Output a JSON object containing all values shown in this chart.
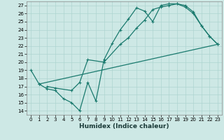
{
  "xlabel": "Humidex (Indice chaleur)",
  "bg_color": "#cde8e5",
  "line_color": "#1a7a6e",
  "grid_color": "#aed4d0",
  "xlim": [
    -0.5,
    23.5
  ],
  "ylim": [
    13.5,
    27.5
  ],
  "xticks": [
    0,
    1,
    2,
    3,
    4,
    5,
    6,
    7,
    8,
    9,
    10,
    11,
    12,
    13,
    14,
    15,
    16,
    17,
    18,
    19,
    20,
    21,
    22,
    23
  ],
  "yticks": [
    14,
    15,
    16,
    17,
    18,
    19,
    20,
    21,
    22,
    23,
    24,
    25,
    26,
    27
  ],
  "line1_x": [
    0,
    1,
    2,
    3,
    4,
    5,
    6,
    7,
    8,
    9,
    10,
    11,
    12,
    13,
    14,
    15,
    16,
    17,
    18,
    19,
    20,
    21,
    22,
    23
  ],
  "line1_y": [
    19,
    17.3,
    16.7,
    16.5,
    15.5,
    15.0,
    14.0,
    17.5,
    15.2,
    20.3,
    22.3,
    24.0,
    25.3,
    26.7,
    26.3,
    25.0,
    27.0,
    27.2,
    27.2,
    26.8,
    26.0,
    24.5,
    23.2,
    22.2
  ],
  "line2_x": [
    2,
    3,
    5,
    6,
    7,
    9,
    11,
    12,
    13,
    14,
    15,
    16,
    17,
    18,
    19,
    20,
    21,
    22,
    23
  ],
  "line2_y": [
    17.0,
    16.8,
    16.5,
    17.5,
    20.3,
    20.0,
    22.2,
    23.0,
    24.2,
    25.2,
    26.5,
    26.8,
    27.0,
    27.2,
    27.0,
    26.2,
    24.5,
    23.2,
    22.2
  ],
  "line3_x": [
    1,
    23
  ],
  "line3_y": [
    17.3,
    22.2
  ]
}
